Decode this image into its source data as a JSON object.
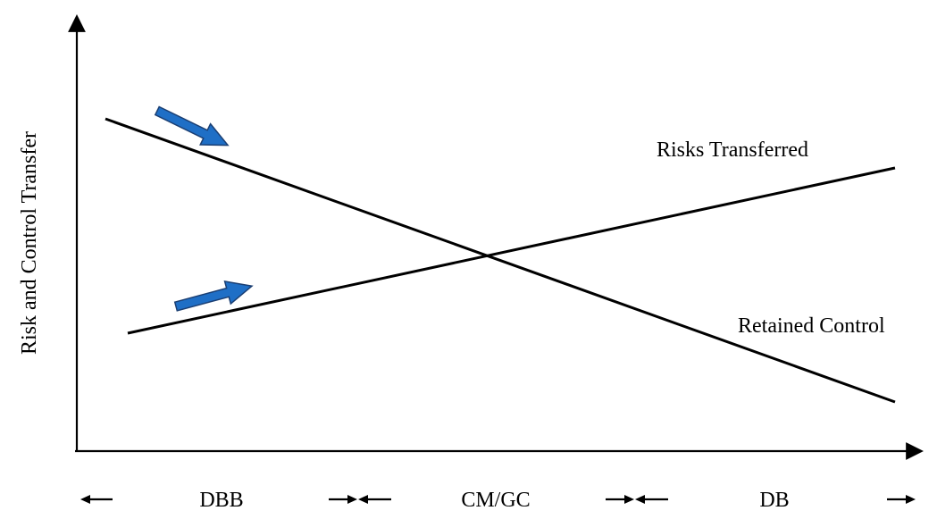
{
  "diagram": {
    "y_axis_label": "Risk and Control Transfer",
    "lines": [
      {
        "name": "Risks Transferred",
        "trend": "increasing"
      },
      {
        "name": "Retained Control",
        "trend": "decreasing"
      }
    ],
    "x_segments": [
      "DBB",
      "CM/GC",
      "DB"
    ],
    "colors": {
      "line": "#000000",
      "arrow_fill": "#1f6fc6",
      "arrow_stroke": "#1b3f73"
    }
  }
}
